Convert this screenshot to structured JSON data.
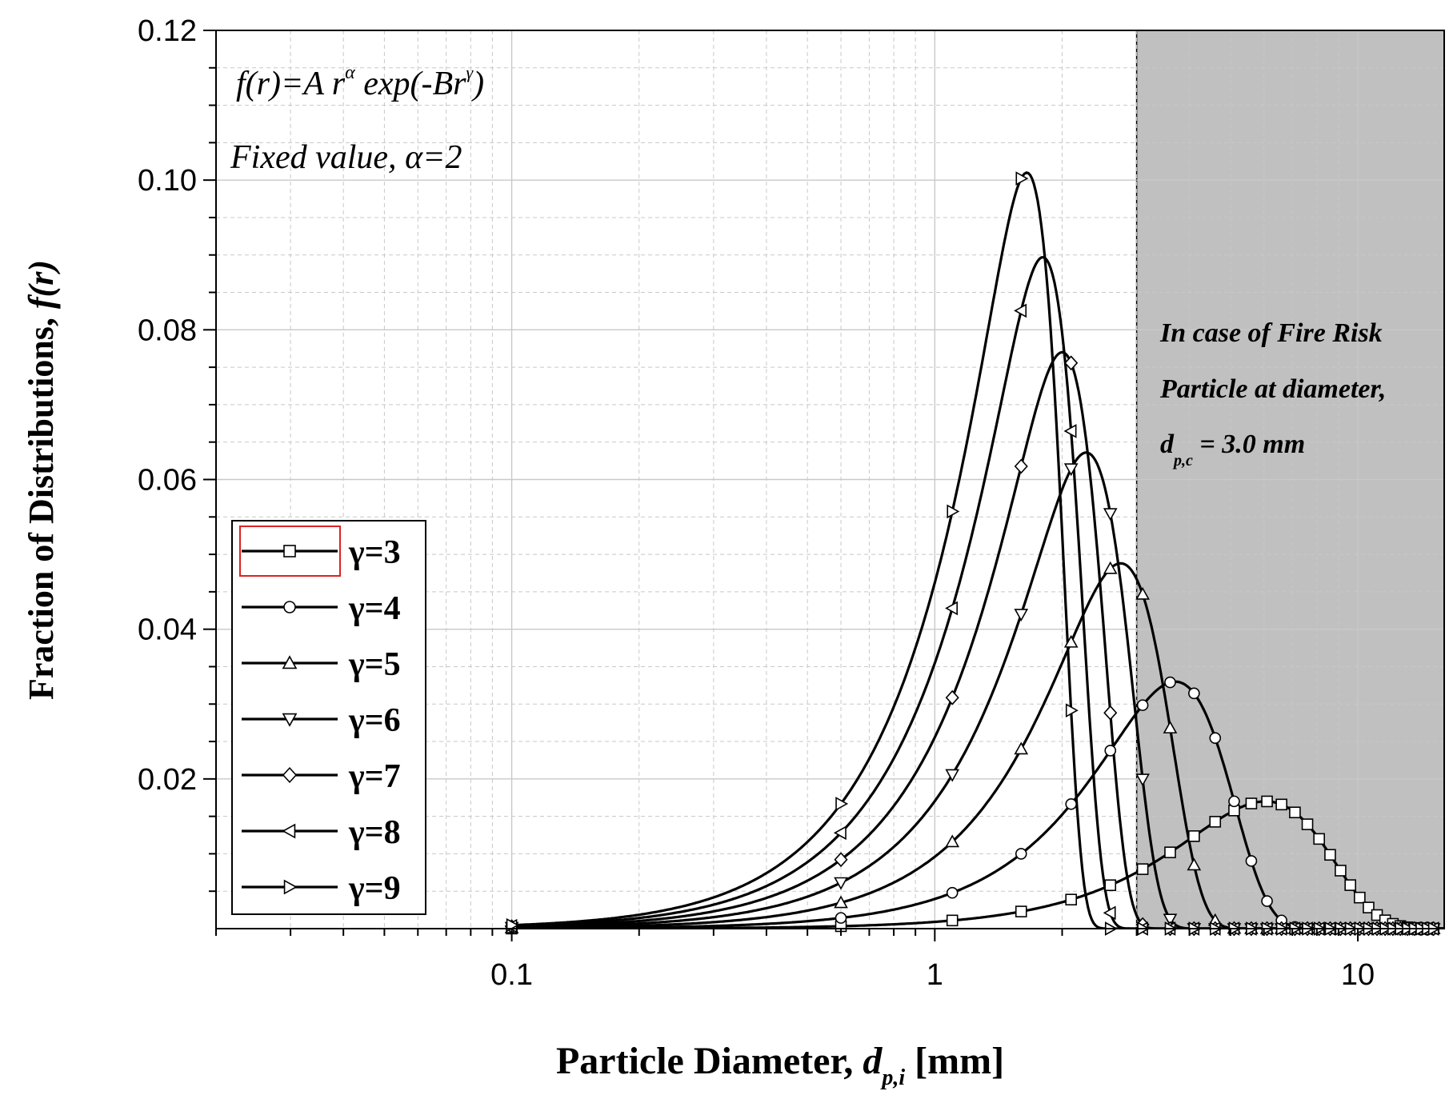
{
  "chart_data": {
    "type": "line",
    "xlabel_main": "Particle Diameter, ",
    "xlabel_sym": "d",
    "xlabel_sub": "p,i",
    "xlabel_unit": " [mm]",
    "ylabel_main": "Fraction of Distributions, ",
    "ylabel_fn": "f(r)",
    "x_scale": "log",
    "xlim": [
      0.02,
      16
    ],
    "ylim": [
      0.0,
      0.12
    ],
    "grid": true,
    "x_ticks": [
      {
        "value": 0.1,
        "label": "0.1"
      },
      {
        "value": 1,
        "label": "1"
      },
      {
        "value": 10,
        "label": "10"
      }
    ],
    "y_ticks": [
      {
        "value": 0.02,
        "label": "0.02"
      },
      {
        "value": 0.04,
        "label": "0.04"
      },
      {
        "value": 0.06,
        "label": "0.06"
      },
      {
        "value": 0.08,
        "label": "0.08"
      },
      {
        "value": 0.1,
        "label": "0.10"
      },
      {
        "value": 0.12,
        "label": "0.12"
      }
    ],
    "annotations": {
      "formula": "f(r)=A r",
      "formula_sup_alpha": "α",
      "formula_mid": " exp(-Br",
      "formula_sup_gamma": "γ",
      "formula_end": ")",
      "fixed": "Fixed value, ",
      "fixed_alpha": "α=2",
      "risk_line1": "In case of Fire Risk",
      "risk_line2": "Particle at diameter,",
      "risk_line3_sym": "d",
      "risk_line3_sub": "p,c",
      "risk_line3_val": " = 3.0 mm"
    },
    "shaded_region": {
      "x_start": 3.0,
      "x_end": 16,
      "color": "#c0c0c0"
    },
    "legend_position": "bottom-left",
    "series": [
      {
        "name": "γ=3",
        "gamma": 3,
        "marker": "square",
        "peak_x": 6.05,
        "peak_y": 0.017
      },
      {
        "name": "γ=4",
        "gamma": 4,
        "marker": "circle",
        "peak_x": 3.7,
        "peak_y": 0.033
      },
      {
        "name": "γ=5",
        "gamma": 5,
        "marker": "triangle-up",
        "peak_x": 2.75,
        "peak_y": 0.0488
      },
      {
        "name": "γ=6",
        "gamma": 6,
        "marker": "triangle-down",
        "peak_x": 2.28,
        "peak_y": 0.0636
      },
      {
        "name": "γ=7",
        "gamma": 7,
        "marker": "diamond",
        "peak_x": 2.0,
        "peak_y": 0.077
      },
      {
        "name": "γ=8",
        "gamma": 8,
        "marker": "triangle-left",
        "peak_x": 1.8,
        "peak_y": 0.0897
      },
      {
        "name": "γ=9",
        "gamma": 9,
        "marker": "triangle-right",
        "peak_x": 1.65,
        "peak_y": 0.101
      }
    ],
    "colors": {
      "line": "#000000",
      "marker_fill": "#ffffff",
      "legend_highlight": "#dd2222",
      "grid": "#c8c8c8"
    }
  }
}
